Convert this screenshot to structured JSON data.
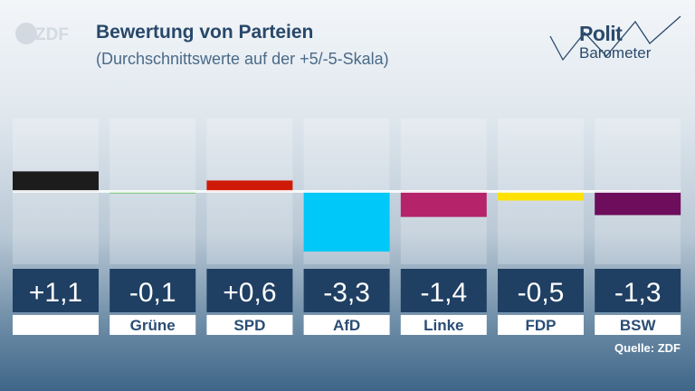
{
  "header": {
    "logo": "ZDF",
    "title": "Bewertung von Parteien",
    "subtitle": "(Durchschnittswerte auf der +5/-5-Skala)",
    "brand_line1": "Polit",
    "brand_line2": "Barometer"
  },
  "footer": {
    "source": "Quelle: ZDF"
  },
  "colors": {
    "title": "#28476a",
    "value_box": "#1f3f63",
    "zero_line": "#ffffff"
  },
  "chart_data": {
    "type": "bar",
    "title": "Bewertung von Parteien",
    "subtitle": "(Durchschnittswerte auf der +5/-5-Skala)",
    "categories": [
      "",
      "Grüne",
      "SPD",
      "AfD",
      "Linke",
      "FDP",
      "BSW"
    ],
    "values": [
      1.1,
      -0.1,
      0.6,
      -3.3,
      -1.4,
      -0.5,
      -1.3
    ],
    "value_labels": [
      "+1,1",
      "-0,1",
      "+0,6",
      "-3,3",
      "-1,4",
      "-0,5",
      "-1,3"
    ],
    "colors": [
      "#1c1c1c",
      "#3cb82b",
      "#d01a08",
      "#00c8f8",
      "#b5236b",
      "#ffe100",
      "#6d0d5c"
    ],
    "ylim": [
      -4,
      4
    ],
    "zero_line": true,
    "xlabel": "",
    "ylabel": ""
  }
}
